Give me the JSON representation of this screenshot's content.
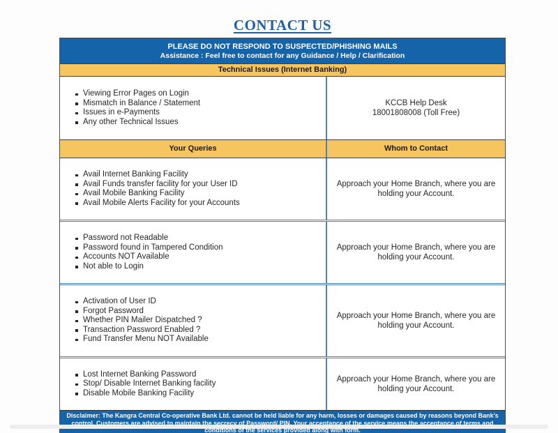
{
  "page": {
    "title": "CONTACT US"
  },
  "banner": {
    "line1": "PLEASE DO NOT RESPOND TO SUSPECTED/PHISHING MAILS",
    "line2": "Assistance : Feel free to contact for any Guidance / Help / Clarification"
  },
  "technical_section": {
    "header": "Technical Issues (Internet Banking)",
    "issues": [
      "Viewing Error Pages on Login",
      "Mismatch in Balance / Statement",
      "Issues in e-Payments",
      "Any other Technical Issues"
    ],
    "contact_line1": "KCCB Help Desk",
    "contact_line2": "18001808008 (Toll Free)"
  },
  "queries_table": {
    "col1_header": "Your Queries",
    "col2_header": "Whom to Contact",
    "rows": [
      {
        "queries": [
          "Avail Internet Banking Facility",
          "Avail Funds transfer facility for your User ID",
          "Avail Mobile Banking Facility",
          "Avail Mobile Alerts Facility for your Accounts"
        ],
        "contact": "Approach your Home Branch, where you are holding your Account."
      },
      {
        "queries": [
          "Password not Readable",
          "Password found in Tampered Condition",
          "Accounts NOT Available",
          "Not able to Login"
        ],
        "contact": "Approach your Home Branch, where you are holding your Account."
      },
      {
        "queries": [
          "Activation of User ID",
          "Forgot Password",
          "Whether PIN Mailer Dispatched ?",
          "Transaction Password Enabled ?",
          "Fund Transfer Menu NOT Available"
        ],
        "contact": "Approach your Home Branch, where you are holding your Account."
      },
      {
        "queries": [
          "Lost Internet Banking Password",
          "Stop/ Disable Internet Banking facility",
          "Disable Mobile Banking Facility"
        ],
        "contact": "Approach your Home Branch, where you are holding your Account."
      }
    ]
  },
  "disclaimer": "Disclaimer: The Kangra Central Co-operative Bank Ltd. cannot be held liable for any harm, losses or damages caused by reasons beyond Bank's control. Customers are advised to maintain the secrecy of Password/ PIN. Your acceptance of the service means the acceptance of terms and conditions of the services provided along with form.",
  "colors": {
    "banner_blue": "#1564a9",
    "header_yellow": "#f6c55f",
    "divider_blue": "#4f81bd",
    "title_blue": "#1e5fa6"
  }
}
